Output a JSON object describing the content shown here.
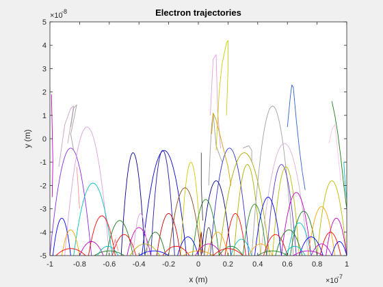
{
  "chart_data": {
    "type": "line",
    "title": "Electron trajectories",
    "xlabel": "x (m)",
    "ylabel": "y (m)",
    "x_multiplier_label": "×10",
    "x_multiplier_exp": "-7",
    "y_multiplier_label": "×10",
    "y_multiplier_exp": "-8",
    "xlim": [
      -1,
      1
    ],
    "ylim": [
      -5,
      5
    ],
    "x_ticks": [
      -1,
      -0.8,
      -0.6,
      -0.4,
      -0.2,
      0,
      0.2,
      0.4,
      0.6,
      0.8,
      1
    ],
    "x_tick_labels": [
      "-1",
      "-0.8",
      "-0.6",
      "-0.4",
      "-0.2",
      "0",
      "0.2",
      "0.4",
      "0.6",
      "0.8",
      "1"
    ],
    "y_ticks": [
      -5,
      -4,
      -3,
      -2,
      -1,
      0,
      1,
      2,
      3,
      4,
      5
    ],
    "y_tick_labels": [
      "-5",
      "-4",
      "-3",
      "-2",
      "-1",
      "0",
      "1",
      "2",
      "3",
      "4",
      "5"
    ],
    "grid": false,
    "colors": {
      "background": "#f0f0f0",
      "plot_bg": "#ffffff",
      "axis": "#262626",
      "palette": [
        "#0000ff",
        "#1a7a1a",
        "#ff0000",
        "#00bfbf",
        "#bf00bf",
        "#b0b000",
        "#404040",
        "#ffa500",
        "#8b4513",
        "#d4a0d4",
        "#8a2be2",
        "#aaaa00",
        "#3060d0",
        "#228b22",
        "#c080c0",
        "#a0a0a0"
      ]
    },
    "arcs": [
      {
        "x0": -0.32,
        "x1": -0.16,
        "ytop": -0.5,
        "color": "#1a1aa0"
      },
      {
        "x0": -0.52,
        "x1": -0.36,
        "ytop": -0.6,
        "color": "#00008b"
      },
      {
        "x0": -0.38,
        "x1": -0.08,
        "ytop": -0.5,
        "color": "#0000cd"
      },
      {
        "x0": -0.12,
        "x1": 0.02,
        "ytop": -1.0,
        "color": "#cccc00"
      },
      {
        "x0": 0.02,
        "x1": 0.22,
        "ytop": -1.8,
        "color": "#00008b"
      },
      {
        "x0": 0.08,
        "x1": 0.34,
        "ytop": -0.4,
        "color": "#3030d0"
      },
      {
        "x0": 0.14,
        "x1": 0.48,
        "ytop": -0.6,
        "color": "#aaaa00"
      },
      {
        "x0": 0.24,
        "x1": 0.42,
        "ytop": -1.1,
        "color": "#b0b000"
      },
      {
        "x0": 0.36,
        "x1": 0.64,
        "ytop": 1.4,
        "color": "#a0a0a0"
      },
      {
        "x0": 0.42,
        "x1": 0.74,
        "ytop": -0.2,
        "color": "#d8b0d8"
      },
      {
        "x0": 0.46,
        "x1": 0.66,
        "ytop": -1.1,
        "color": "#6030c0"
      },
      {
        "x0": 0.5,
        "x1": 0.68,
        "ytop": -1.2,
        "color": "#bbbb00"
      },
      {
        "x0": 0.56,
        "x1": 0.76,
        "ytop": -2.3,
        "color": "#bf00bf"
      },
      {
        "x0": 0.62,
        "x1": 0.8,
        "ytop": -3.1,
        "color": "#1a7a1a"
      },
      {
        "x0": -1.0,
        "x1": -0.72,
        "ytop": -0.4,
        "color": "#8a2be2"
      },
      {
        "x0": -0.9,
        "x1": -0.6,
        "ytop": 0.5,
        "color": "#e0a0e0"
      },
      {
        "x0": -0.84,
        "x1": -0.58,
        "ytop": -1.9,
        "color": "#00bfbf"
      },
      {
        "x0": -0.74,
        "x1": -0.56,
        "ytop": -3.3,
        "color": "#ff0000"
      },
      {
        "x0": -0.62,
        "x1": -0.44,
        "ytop": -3.5,
        "color": "#1a7a1a"
      },
      {
        "x0": -0.28,
        "x1": -0.12,
        "ytop": -3.2,
        "color": "#cc0000"
      },
      {
        "x0": -0.2,
        "x1": 0.02,
        "ytop": -2.1,
        "color": "#8b4513"
      },
      {
        "x0": -0.04,
        "x1": 0.14,
        "ytop": -2.6,
        "color": "#228b22"
      },
      {
        "x0": 0.18,
        "x1": 0.32,
        "ytop": -3.2,
        "color": "#ff0000"
      },
      {
        "x0": 0.3,
        "x1": 0.46,
        "ytop": -2.8,
        "color": "#228b22"
      },
      {
        "x0": 0.38,
        "x1": 0.56,
        "ytop": -2.5,
        "color": "#0000ff"
      },
      {
        "x0": 0.6,
        "x1": 0.76,
        "ytop": -3.6,
        "color": "#00bfbf"
      },
      {
        "x0": 0.74,
        "x1": 0.92,
        "ytop": -2.9,
        "color": "#ffa500"
      },
      {
        "x0": 0.8,
        "x1": 1.0,
        "ytop": -1.8,
        "color": "#bbbb00"
      },
      {
        "x0": 0.86,
        "x1": 1.0,
        "ytop": -3.4,
        "color": "#bf00bf"
      },
      {
        "x0": -0.98,
        "x1": -0.86,
        "ytop": -3.4,
        "color": "#0000ff"
      },
      {
        "x0": -0.92,
        "x1": -0.8,
        "ytop": -3.9,
        "color": "#ffa500"
      },
      {
        "x0": -0.58,
        "x1": -0.42,
        "ytop": -4.1,
        "color": "#ff0000"
      },
      {
        "x0": -0.48,
        "x1": -0.32,
        "ytop": -3.8,
        "color": "#bf00bf"
      },
      {
        "x0": -0.36,
        "x1": -0.22,
        "ytop": -4.0,
        "color": "#1a7a1a"
      },
      {
        "x0": -0.14,
        "x1": 0.0,
        "ytop": -4.2,
        "color": "#0000ff"
      },
      {
        "x0": 0.06,
        "x1": 0.2,
        "ytop": -4.0,
        "color": "#ffa500"
      },
      {
        "x0": 0.22,
        "x1": 0.36,
        "ytop": -4.3,
        "color": "#00bfbf"
      },
      {
        "x0": 0.44,
        "x1": 0.6,
        "ytop": -4.1,
        "color": "#ff0000"
      },
      {
        "x0": 0.52,
        "x1": 0.7,
        "ytop": -3.9,
        "color": "#1a7a1a"
      },
      {
        "x0": 0.68,
        "x1": 0.84,
        "ytop": -4.2,
        "color": "#0000ff"
      },
      {
        "x0": 0.82,
        "x1": 0.96,
        "ytop": -4.0,
        "color": "#ff0000"
      },
      {
        "x0": -0.8,
        "x1": -0.64,
        "ytop": -4.4,
        "color": "#bf00bf"
      },
      {
        "x0": -0.68,
        "x1": -0.54,
        "ytop": -4.6,
        "color": "#00bfbf"
      },
      {
        "x0": -0.46,
        "x1": -0.26,
        "ytop": -4.5,
        "color": "#b0b000"
      },
      {
        "x0": -0.24,
        "x1": -0.06,
        "ytop": -4.6,
        "color": "#ff0000"
      },
      {
        "x0": -0.02,
        "x1": 0.16,
        "ytop": -4.5,
        "color": "#bf00bf"
      },
      {
        "x0": 0.14,
        "x1": 0.3,
        "ytop": -4.6,
        "color": "#1a7a1a"
      },
      {
        "x0": 0.34,
        "x1": 0.5,
        "ytop": -4.5,
        "color": "#ffa500"
      },
      {
        "x0": 0.58,
        "x1": 0.72,
        "ytop": -4.6,
        "color": "#00bfbf"
      },
      {
        "x0": 0.76,
        "x1": 0.9,
        "ytop": -4.5,
        "color": "#bf00bf"
      },
      {
        "x0": 0.9,
        "x1": 1.0,
        "ytop": -4.4,
        "color": "#0000ff"
      },
      {
        "x0": -0.96,
        "x1": -0.76,
        "ytop": -4.7,
        "color": "#ff0000"
      },
      {
        "x0": -0.7,
        "x1": -0.5,
        "ytop": -4.8,
        "color": "#1a7a1a"
      },
      {
        "x0": -0.4,
        "x1": -0.2,
        "ytop": -4.8,
        "color": "#0000ff"
      },
      {
        "x0": -0.1,
        "x1": 0.1,
        "ytop": -4.8,
        "color": "#ffa500"
      },
      {
        "x0": 0.1,
        "x1": 0.3,
        "ytop": -4.7,
        "color": "#ff0000"
      },
      {
        "x0": 0.4,
        "x1": 0.6,
        "ytop": -4.8,
        "color": "#1a7a1a"
      },
      {
        "x0": 0.64,
        "x1": 0.84,
        "ytop": -4.8,
        "color": "#bf00bf"
      },
      {
        "x0": -0.44,
        "x1": -0.34,
        "ytop": -3.2,
        "color": "#e0a0e0"
      },
      {
        "x0": 0.04,
        "x1": 0.1,
        "ytop": -3.8,
        "color": "#404040"
      }
    ],
    "paths": [
      {
        "color": "#c8a0c8",
        "points": [
          [
            -0.94,
            -1.2
          ],
          [
            -0.9,
            0.6
          ],
          [
            -0.86,
            1.3
          ],
          [
            -0.84,
            1.4
          ],
          [
            -0.86,
            0.6
          ],
          [
            -0.88,
            -0.2
          ]
        ]
      },
      {
        "color": "#a0a0a0",
        "points": [
          [
            -0.86,
            0.5
          ],
          [
            -0.84,
            1.3
          ],
          [
            -0.82,
            1.45
          ],
          [
            -0.84,
            0.8
          ],
          [
            -0.86,
            0.2
          ],
          [
            -0.84,
            -0.5
          ]
        ]
      },
      {
        "color": "#bf00bf",
        "points": [
          [
            -0.99,
            1.9
          ],
          [
            -0.985,
            0.5
          ],
          [
            -0.98,
            -1.0
          ],
          [
            -0.985,
            -2.5
          ]
        ]
      },
      {
        "color": "#ff9090",
        "points": [
          [
            -0.82,
            -1.2
          ],
          [
            -0.81,
            -2.0
          ],
          [
            -0.8,
            -3.0
          ]
        ]
      },
      {
        "color": "#a0a0a0",
        "points": [
          [
            0.07,
            -2.0
          ],
          [
            0.08,
            -0.5
          ],
          [
            0.09,
            0.6
          ],
          [
            0.1,
            1.1
          ],
          [
            0.12,
            -0.3
          ],
          [
            0.16,
            -1.0
          ]
        ]
      },
      {
        "color": "#e0a0e0",
        "points": [
          [
            0.08,
            1.0
          ],
          [
            0.1,
            3.4
          ],
          [
            0.12,
            3.6
          ],
          [
            0.13,
            1.2
          ],
          [
            0.15,
            -0.4
          ]
        ]
      },
      {
        "color": "#cccc00",
        "points": [
          [
            0.12,
            -0.5
          ],
          [
            0.14,
            2.0
          ],
          [
            0.16,
            3.2
          ],
          [
            0.19,
            4.1
          ],
          [
            0.2,
            4.2
          ],
          [
            0.2,
            3.0
          ],
          [
            0.19,
            1.0
          ]
        ]
      },
      {
        "color": "#d4a000",
        "points": [
          [
            0.09,
            0.2
          ],
          [
            0.1,
            1.1
          ],
          [
            0.12,
            0.8
          ],
          [
            0.16,
            -0.2
          ],
          [
            0.2,
            -1.2
          ],
          [
            0.22,
            -2.0
          ]
        ]
      },
      {
        "color": "#3060d0",
        "points": [
          [
            0.6,
            0.5
          ],
          [
            0.62,
            1.8
          ],
          [
            0.63,
            2.3
          ],
          [
            0.64,
            2.2
          ],
          [
            0.66,
            0.8
          ],
          [
            0.68,
            -0.4
          ],
          [
            0.7,
            -1.4
          ],
          [
            0.72,
            -2.2
          ]
        ]
      },
      {
        "color": "#1a7a1a",
        "points": [
          [
            0.9,
            1.6
          ],
          [
            0.92,
            1.0
          ],
          [
            0.94,
            0.2
          ],
          [
            0.96,
            -0.8
          ],
          [
            0.98,
            -2.0
          ],
          [
            1.0,
            -3.0
          ]
        ]
      },
      {
        "color": "#ffc0e0",
        "points": [
          [
            0.88,
            -0.2
          ],
          [
            0.9,
            0.4
          ],
          [
            0.92,
            0.6
          ],
          [
            0.94,
            -0.6
          ],
          [
            0.96,
            -1.8
          ]
        ]
      },
      {
        "color": "#a0a0a0",
        "points": [
          [
            0.3,
            -0.4
          ],
          [
            0.34,
            -0.3
          ],
          [
            0.36,
            -0.5
          ],
          [
            0.36,
            -1.0
          ]
        ]
      },
      {
        "color": "#00bfbf",
        "points": [
          [
            0.98,
            -1.0
          ],
          [
            0.99,
            -2.0
          ],
          [
            1.0,
            -2.6
          ]
        ]
      },
      {
        "color": "#404040",
        "points": [
          [
            0.02,
            -0.6
          ],
          [
            0.02,
            -2.0
          ],
          [
            0.03,
            -3.5
          ]
        ]
      },
      {
        "color": "#ff8080",
        "points": [
          [
            -0.58,
            -4.8
          ],
          [
            -0.56,
            -4.3
          ],
          [
            -0.54,
            -4.8
          ]
        ]
      },
      {
        "color": "#8b0000",
        "points": [
          [
            0.0,
            -4.9
          ],
          [
            0.02,
            -4.0
          ],
          [
            0.03,
            -4.9
          ]
        ]
      }
    ]
  }
}
